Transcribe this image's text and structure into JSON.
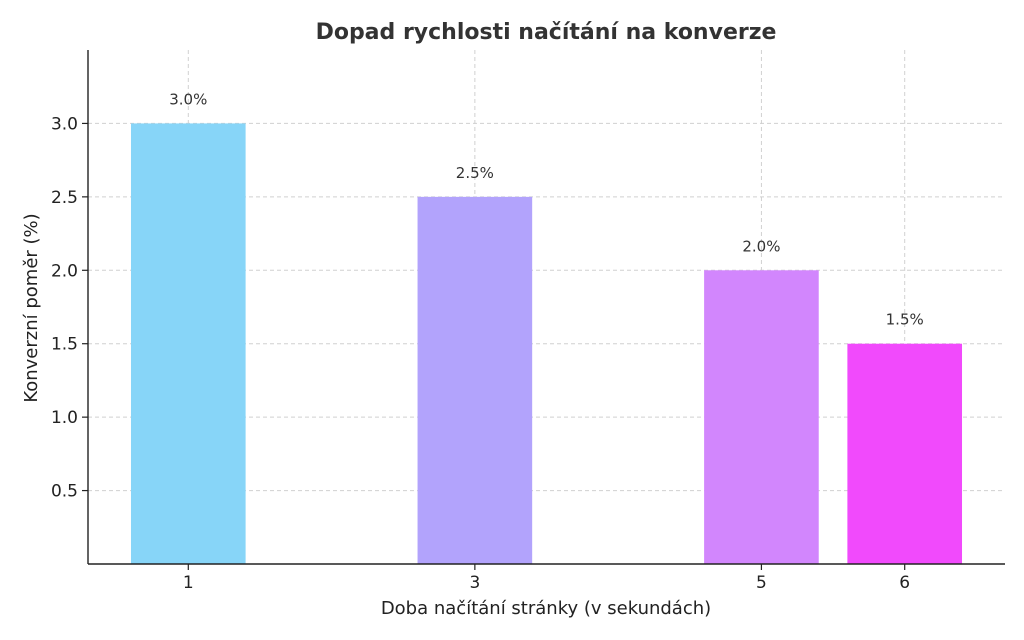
{
  "chart_data": {
    "type": "bar",
    "title": "Dopad rychlosti načítání na konverze",
    "xlabel": "Doba načítání stránky (v sekundách)",
    "ylabel": "Konverzní poměr (%)",
    "x": [
      1,
      3,
      5,
      6
    ],
    "values": [
      3.0,
      2.5,
      2.0,
      1.5
    ],
    "data_labels": [
      "3.0%",
      "2.5%",
      "2.0%",
      "1.5%"
    ],
    "colors": [
      "#87d5f8",
      "#b2a3fc",
      "#d286fd",
      "#f14afc"
    ],
    "xlim": [
      0.3,
      6.7
    ],
    "ylim": [
      0,
      3.5
    ],
    "yticks": [
      0.5,
      1.0,
      1.5,
      2.0,
      2.5,
      3.0
    ],
    "ytick_labels": [
      "0.5",
      "1.0",
      "1.5",
      "2.0",
      "2.5",
      "3.0"
    ],
    "xtick_labels": [
      "1",
      "3",
      "5",
      "6"
    ],
    "bar_width": 0.8,
    "grid": true
  }
}
